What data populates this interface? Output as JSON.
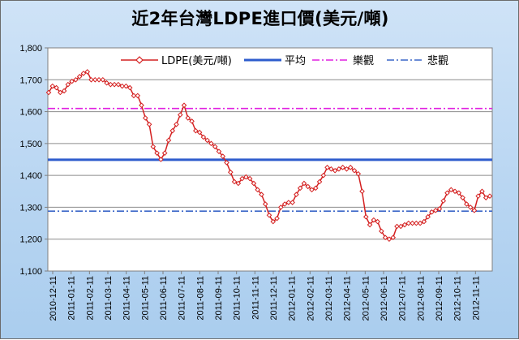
{
  "title": "近2年台灣LDPE進口價(美元/噸)",
  "colors": {
    "series": "#d42020",
    "average": "#2e5ccd",
    "optimistic": "#e020e0",
    "pessimistic": "#3a66c8",
    "background": "#b9d6f2",
    "plot": "#ffffff"
  },
  "chart_data": {
    "type": "line",
    "title": "近2年台灣LDPE進口價(美元/噸)",
    "xlabel": "",
    "ylabel": "",
    "ylim": [
      1100,
      1800
    ],
    "yticks": [
      1100,
      1200,
      1300,
      1400,
      1500,
      1600,
      1700,
      1800
    ],
    "ytick_labels": [
      "1,100",
      "1,200",
      "1,300",
      "1,400",
      "1,500",
      "1,600",
      "1,700",
      "1,800"
    ],
    "x_tick_labels": [
      "2010-12-11",
      "2011-01-11",
      "2011-02-11",
      "2011-03-11",
      "2011-04-11",
      "2011-05-11",
      "2011-06-11",
      "2011-07-11",
      "2011-08-11",
      "2011-09-11",
      "2011-10-11",
      "2011-11-11",
      "2011-12-11",
      "2012-01-11",
      "2012-02-11",
      "2012-03-11",
      "2012-04-11",
      "2012-05-11",
      "2012-06-11",
      "2012-07-11",
      "2012-08-11",
      "2012-09-11",
      "2012-10-11",
      "2012-11-11"
    ],
    "grid": true,
    "legend_position": "top",
    "series": [
      {
        "name": "LDPE(美元/噸)",
        "style": "line-diamond-markers",
        "values": [
          1660,
          1680,
          1675,
          1660,
          1665,
          1685,
          1695,
          1700,
          1710,
          1720,
          1725,
          1700,
          1700,
          1700,
          1700,
          1690,
          1685,
          1685,
          1685,
          1680,
          1680,
          1675,
          1650,
          1650,
          1620,
          1580,
          1560,
          1490,
          1470,
          1450,
          1470,
          1510,
          1540,
          1560,
          1590,
          1620,
          1580,
          1570,
          1540,
          1535,
          1520,
          1510,
          1500,
          1490,
          1475,
          1460,
          1440,
          1410,
          1380,
          1375,
          1390,
          1395,
          1390,
          1375,
          1355,
          1340,
          1310,
          1275,
          1255,
          1265,
          1300,
          1310,
          1315,
          1315,
          1340,
          1360,
          1375,
          1365,
          1355,
          1360,
          1380,
          1400,
          1425,
          1420,
          1415,
          1420,
          1425,
          1420,
          1425,
          1415,
          1405,
          1350,
          1270,
          1245,
          1260,
          1255,
          1225,
          1205,
          1200,
          1205,
          1240,
          1240,
          1245,
          1250,
          1250,
          1250,
          1250,
          1255,
          1270,
          1285,
          1290,
          1295,
          1320,
          1345,
          1355,
          1350,
          1345,
          1330,
          1310,
          1300,
          1290,
          1335,
          1350,
          1330,
          1335
        ]
      },
      {
        "name": "平均",
        "style": "solid",
        "values": [
          1449
        ]
      },
      {
        "name": "樂觀",
        "style": "dash-dot",
        "values": [
          1610
        ]
      },
      {
        "name": "悲觀",
        "style": "dash-dot",
        "values": [
          1288
        ]
      }
    ]
  }
}
